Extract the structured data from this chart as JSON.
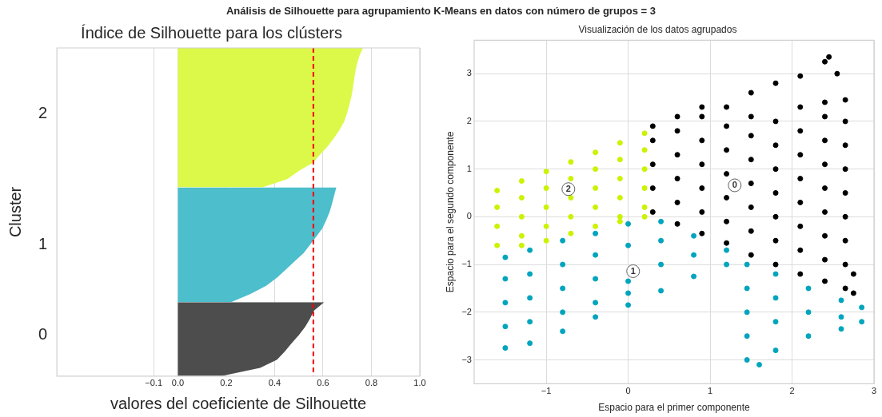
{
  "chart_data": [
    {
      "type": "area",
      "title": "Índice de Silhouette para los clústers",
      "xlabel": "valores del coeficiente de Silhouette",
      "ylabel": "Cluster",
      "orientation": "horizontal",
      "xlim": [
        -0.5,
        1.0
      ],
      "xticks": [
        {
          "value": -0.1,
          "label": "−0.1"
        },
        {
          "value": 0,
          "label": "0.0"
        },
        0.2,
        0.4,
        0.6,
        0.8,
        {
          "value": 1,
          "label": "1.0"
        }
      ],
      "grid": "x",
      "categories": [
        null,
        null,
        null,
        null,
        null,
        null,
        null,
        null,
        "2",
        null,
        null,
        null,
        null,
        null,
        null,
        null,
        null,
        null,
        null,
        null,
        null,
        null,
        null,
        null,
        "1",
        null,
        null,
        null,
        null,
        null,
        null,
        null,
        null,
        null,
        null,
        "0",
        null,
        null,
        null,
        null,
        null
      ],
      "series": [
        {
          "color": "#dcf94a",
          "values": [
            0.765,
            0.75,
            0.74,
            0.733,
            0.728,
            0.723,
            0.717,
            0.708,
            0.699,
            0.687,
            0.668,
            0.645,
            0.619,
            0.588,
            0.558,
            0.5,
            0.452,
            0.35,
            null,
            null,
            null,
            null,
            null,
            null,
            null,
            null,
            null,
            null,
            null,
            null,
            null,
            null,
            null,
            null,
            null,
            null,
            null,
            null,
            null,
            null,
            null
          ]
        },
        {
          "color": "#4dbecc",
          "values": [
            null,
            null,
            null,
            null,
            null,
            null,
            null,
            null,
            null,
            null,
            null,
            null,
            null,
            null,
            null,
            null,
            null,
            0.655,
            0.646,
            0.637,
            0.627,
            0.613,
            0.597,
            0.572,
            0.546,
            0.52,
            0.483,
            0.447,
            0.41,
            0.365,
            0.3,
            0.22,
            null,
            null,
            null,
            null,
            null,
            null,
            null,
            null,
            null
          ]
        },
        {
          "color": "#4d4d4d",
          "values": [
            null,
            null,
            null,
            null,
            null,
            null,
            null,
            null,
            null,
            null,
            null,
            null,
            null,
            null,
            null,
            null,
            null,
            null,
            null,
            null,
            null,
            null,
            null,
            null,
            null,
            null,
            null,
            null,
            null,
            null,
            null,
            0.605,
            0.563,
            0.546,
            0.526,
            0.5,
            0.47,
            0.442,
            0.41,
            0.34,
            0.18
          ]
        }
      ],
      "ref_lines": [
        {
          "axis": "x",
          "value": 0.56,
          "color": "#ff0000",
          "line_style": "dashed"
        }
      ],
      "annotations": [
        "Análisis de Silhouette para agrupamiento K-Means en datos con número de grupos = 3"
      ]
    },
    {
      "type": "scatter",
      "title": "Visualización de los datos agrupados",
      "xlabel": "Espacio para el primer componente",
      "ylabel": "Espacio para el segundo componente",
      "xlim": [
        -1.88,
        3.0
      ],
      "xticks": [
        {
          "value": -1,
          "label": "−1"
        },
        0,
        1,
        2,
        3
      ],
      "ylim": [
        -3.5,
        3.7
      ],
      "yticks": [
        {
          "value": -3,
          "label": "−3"
        },
        {
          "value": -2,
          "label": "−2"
        },
        {
          "value": -1,
          "label": "−1"
        },
        0,
        1,
        2,
        3
      ],
      "grid": true,
      "marker": "circle",
      "series": [
        {
          "color": "#000000",
          "x": [
            0.3,
            0.3,
            0.3,
            0.3,
            0.3,
            0.6,
            0.6,
            0.6,
            0.6,
            0.6,
            0.6,
            0.9,
            0.9,
            0.9,
            0.9,
            0.9,
            0.9,
            0.9,
            1.2,
            1.2,
            1.2,
            1.2,
            1.2,
            1.2,
            1.2,
            1.5,
            1.5,
            1.5,
            1.5,
            1.5,
            1.5,
            1.5,
            1.5,
            1.8,
            1.8,
            1.8,
            1.8,
            1.8,
            1.8,
            1.8,
            1.8,
            2.1,
            2.1,
            2.1,
            2.1,
            2.1,
            2.1,
            2.1,
            2.1,
            2.1,
            2.4,
            2.4,
            2.4,
            2.4,
            2.4,
            2.4,
            2.4,
            2.4,
            2.4,
            2.4,
            2.65,
            2.65,
            2.65,
            2.65,
            2.65,
            2.65,
            2.65,
            2.65,
            2.65,
            2.75,
            2.75,
            2.45,
            2.55
          ],
          "values": [
            0.1,
            0.6,
            1.1,
            1.6,
            1.9,
            -0.15,
            0.3,
            0.8,
            1.3,
            1.8,
            2.1,
            -0.35,
            0.1,
            0.6,
            1.1,
            1.6,
            2.1,
            2.3,
            -0.55,
            -0.1,
            0.4,
            0.9,
            1.4,
            1.9,
            2.3,
            -0.8,
            -0.3,
            0.2,
            0.7,
            1.2,
            1.7,
            2.1,
            2.6,
            -1.0,
            -0.5,
            0,
            0.5,
            1.0,
            1.5,
            2.0,
            2.8,
            -1.2,
            -0.7,
            -0.2,
            0.3,
            0.8,
            1.3,
            1.8,
            2.3,
            2.95,
            -1.35,
            -0.9,
            -0.4,
            0.1,
            0.6,
            1.1,
            1.6,
            2.1,
            2.4,
            3.25,
            -1.5,
            -1.0,
            -0.5,
            0,
            0.5,
            1.0,
            1.5,
            2.0,
            2.45,
            -1.6,
            -1.2,
            3.35,
            3.0
          ]
        },
        {
          "color": "#00a5bd",
          "x": [
            -1.5,
            -1.5,
            -1.5,
            -1.5,
            -1.5,
            -1.2,
            -1.2,
            -1.2,
            -1.2,
            -1.2,
            -0.8,
            -0.8,
            -0.8,
            -0.8,
            -0.8,
            -0.4,
            -0.4,
            -0.4,
            -0.4,
            -0.4,
            0,
            0,
            0,
            0,
            0,
            0.4,
            0.4,
            0.4,
            0.4,
            0.8,
            0.8,
            0.8,
            1.2,
            1.2,
            1.45,
            1.45,
            1.45,
            1.45,
            1.45,
            1.8,
            1.8,
            1.8,
            1.8,
            2.2,
            2.2,
            2.2,
            2.6,
            2.6,
            2.6,
            2.85,
            2.85,
            1.6
          ],
          "values": [
            -0.85,
            -1.3,
            -1.8,
            -2.3,
            -2.75,
            -0.7,
            -1.2,
            -1.7,
            -2.2,
            -2.65,
            -0.5,
            -1.0,
            -1.5,
            -2.0,
            -2.4,
            -0.35,
            -0.8,
            -1.3,
            -1.8,
            -2.1,
            -0.15,
            -0.6,
            -1.35,
            -1.6,
            -1.85,
            -0.1,
            -0.5,
            -1.0,
            -1.55,
            -0.4,
            -0.8,
            -1.25,
            -0.7,
            -1.0,
            -1.0,
            -1.5,
            -2.0,
            -2.5,
            -3.0,
            -1.2,
            -1.7,
            -2.2,
            -2.8,
            -1.5,
            -2.0,
            -2.5,
            -1.75,
            -2.1,
            -2.35,
            -1.9,
            -2.2,
            -3.1
          ]
        },
        {
          "color": "#ccf200",
          "x": [
            -1.6,
            -1.6,
            -1.6,
            -1.6,
            -1.3,
            -1.3,
            -1.3,
            -1.3,
            -1.3,
            -1.0,
            -1.0,
            -1.0,
            -1.0,
            -1.0,
            -0.7,
            -0.7,
            -0.7,
            -0.7,
            -0.7,
            -0.4,
            -0.4,
            -0.4,
            -0.4,
            -0.4,
            -0.1,
            -0.1,
            -0.1,
            -0.1,
            -0.1,
            -0.1,
            0.2,
            0.2,
            0.2,
            0.2,
            0.2,
            0.2
          ],
          "values": [
            0.55,
            0.2,
            -0.2,
            -0.6,
            0.75,
            0.4,
            0,
            -0.4,
            -0.6,
            0.95,
            0.6,
            0.2,
            -0.2,
            -0.5,
            1.15,
            0.8,
            0.4,
            0,
            -0.35,
            1.35,
            1.0,
            0.6,
            0.2,
            -0.2,
            1.55,
            1.2,
            0.8,
            0.4,
            0,
            -0.1,
            1.75,
            1.4,
            1.0,
            0.6,
            0.2,
            0.0
          ]
        }
      ],
      "annotations": [
        {
          "text": "0",
          "x": 1.3,
          "y": 0.66
        },
        {
          "text": "1",
          "x": 0.06,
          "y": -1.14
        },
        {
          "text": "2",
          "x": -0.73,
          "y": 0.58
        }
      ]
    }
  ]
}
